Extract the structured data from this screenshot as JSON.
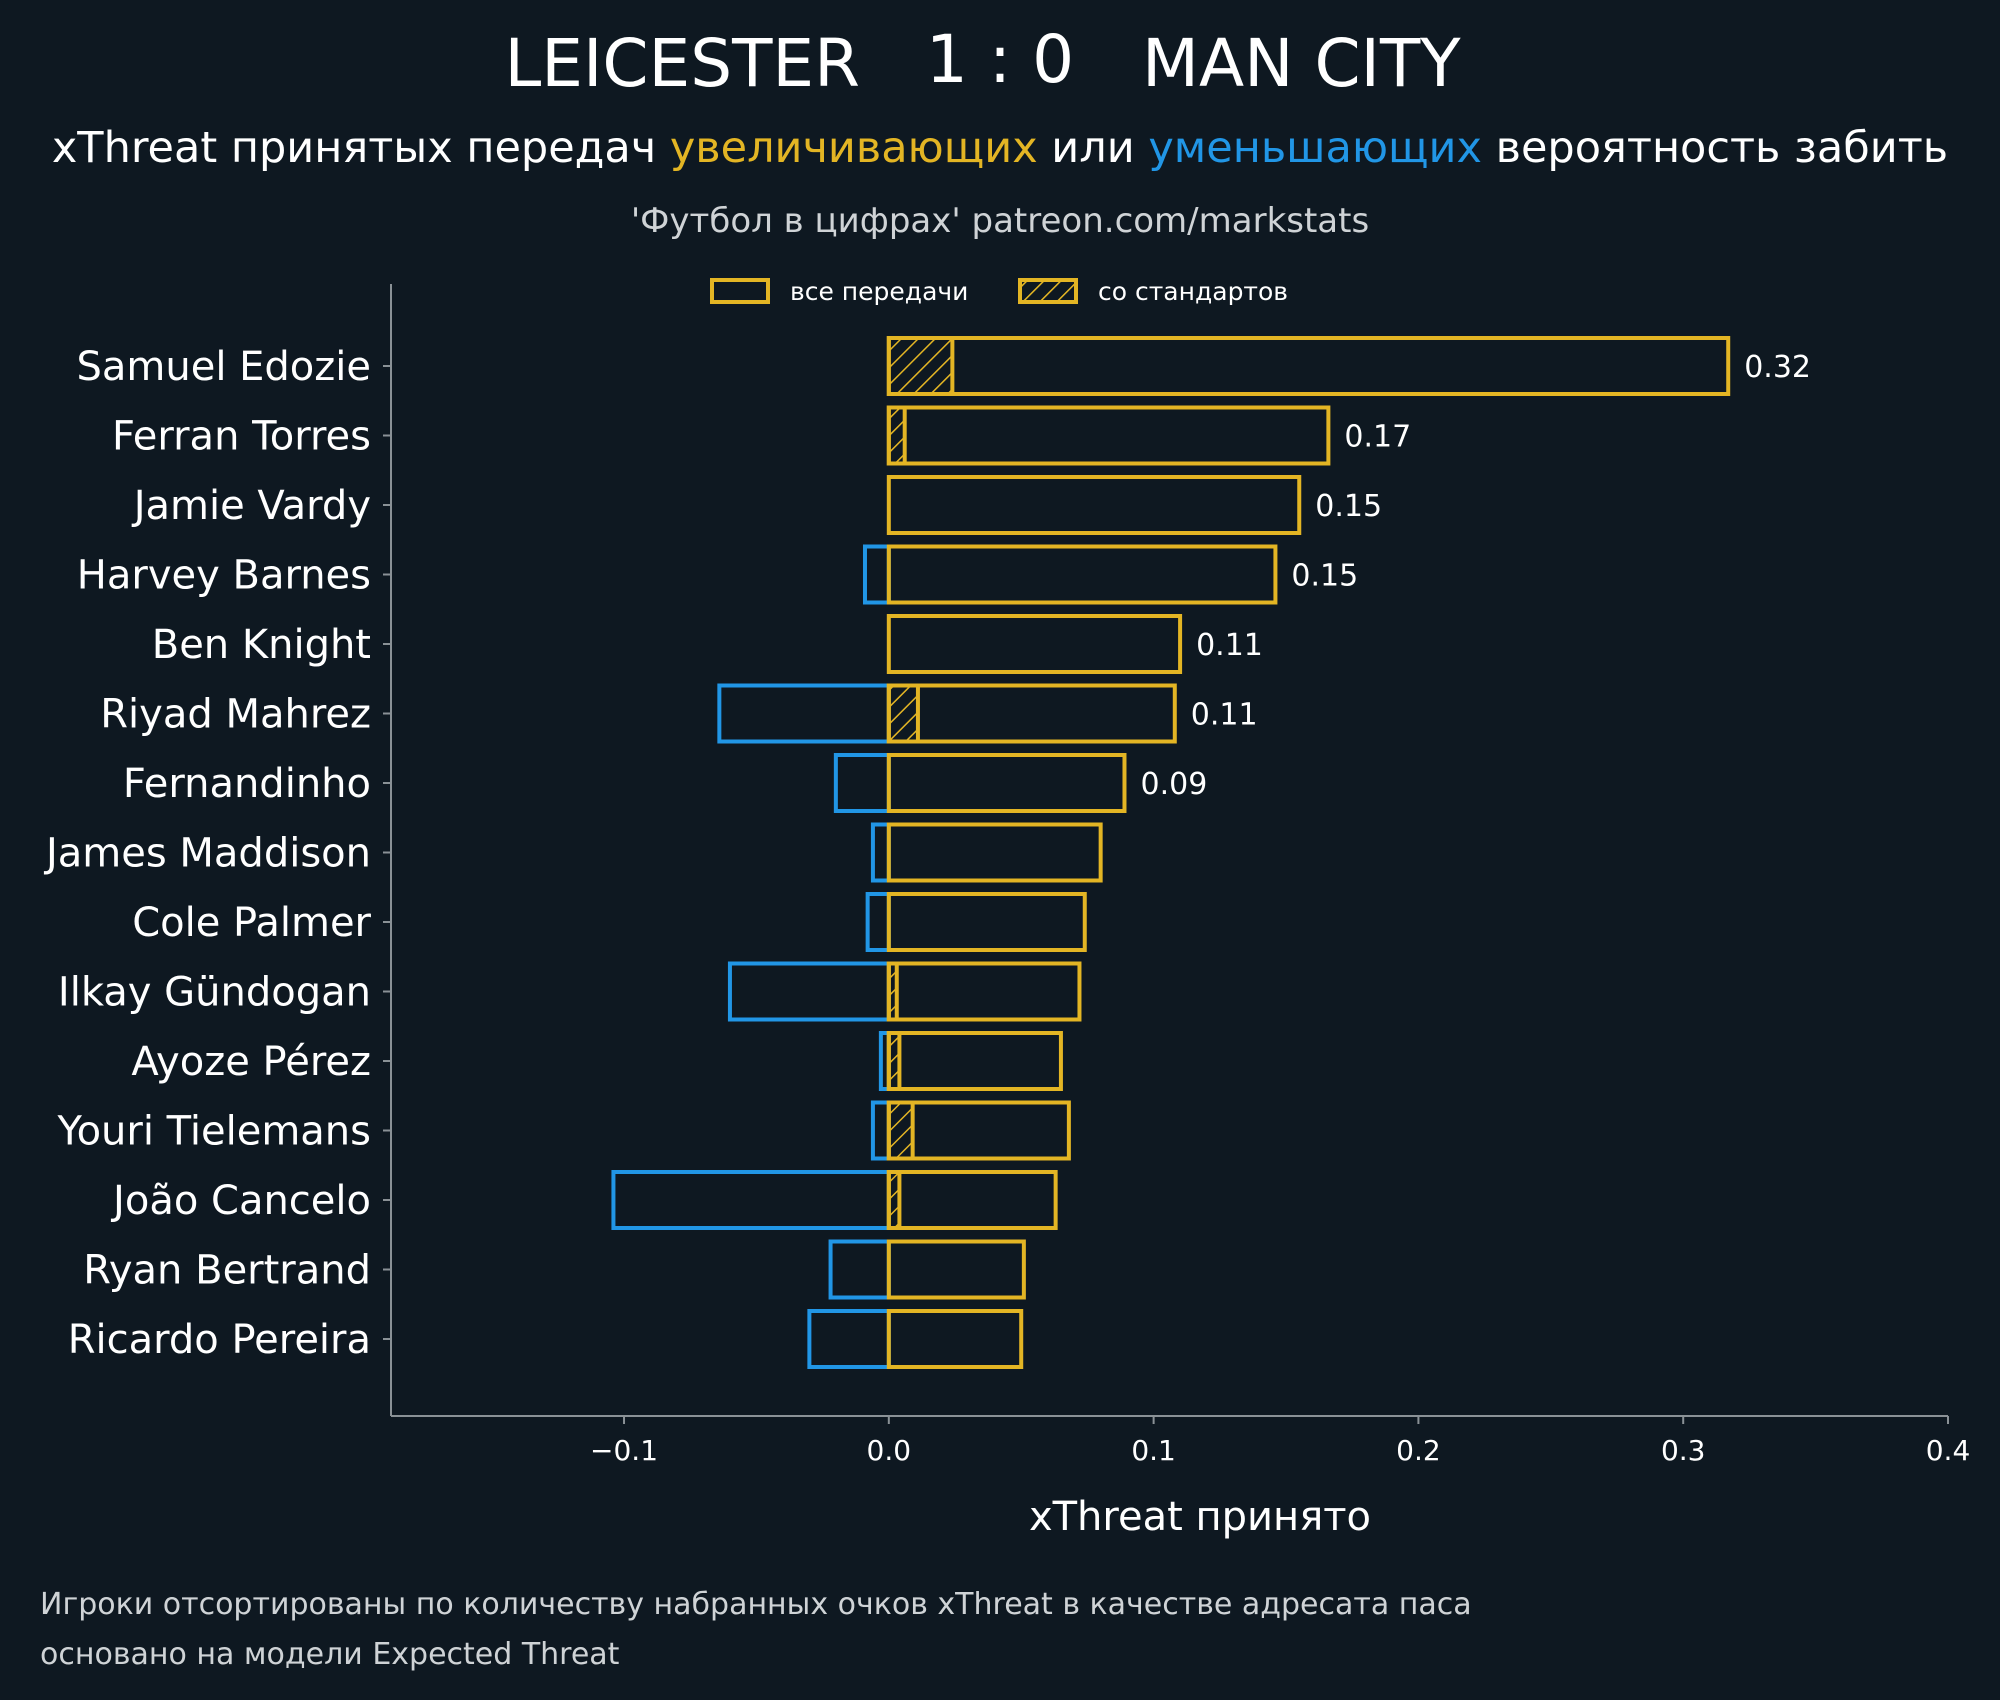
{
  "header": {
    "home_team": "LEICESTER",
    "score": "1 : 0",
    "away_team": "MAN CITY",
    "subtitle_parts": [
      {
        "text": "xThreat принятых передач ",
        "color": "#ffffff"
      },
      {
        "text": "увеличивающих",
        "color": "#e3b524"
      },
      {
        "text": " или ",
        "color": "#ffffff"
      },
      {
        "text": "уменьшающих",
        "color": "#2196e6"
      },
      {
        "text": " вероятность забить",
        "color": "#ffffff"
      }
    ],
    "source": "'Футбол в цифрах' patreon.com/markstats"
  },
  "legend": {
    "all_passes": "все передачи",
    "set_pieces": "со стандартов"
  },
  "colors": {
    "background": "#0e1821",
    "positive": "#e3b524",
    "negative": "#2196e6",
    "axis": "#8a9196"
  },
  "chart_data": {
    "type": "bar",
    "orientation": "horizontal",
    "title": "LEICESTER 1 : 0 MAN CITY",
    "xlabel": "xThreat принято",
    "xlim": [
      -0.188,
      0.4
    ],
    "xticks": [
      -0.1,
      0.0,
      0.1,
      0.2,
      0.3,
      0.4
    ],
    "xtick_labels": [
      "−0.1",
      "0.0",
      "0.1",
      "0.2",
      "0.3",
      "0.4"
    ],
    "categories": [
      "Samuel Edozie",
      "Ferran Torres",
      "Jamie Vardy",
      "Harvey Barnes",
      "Ben Knight",
      "Riyad Mahrez",
      "Fernandinho",
      "James Maddison",
      "Cole Palmer",
      "Ilkay Gündogan",
      "Ayoze Pérez",
      "Youri Tielemans",
      "João Cancelo",
      "Ryan Bertrand",
      "Ricardo Pereira"
    ],
    "series": [
      {
        "name": "все передачи (увеличивающих)",
        "values": [
          0.317,
          0.166,
          0.155,
          0.146,
          0.11,
          0.108,
          0.089,
          0.08,
          0.074,
          0.072,
          0.065,
          0.068,
          0.063,
          0.051,
          0.05
        ]
      },
      {
        "name": "со стандартов",
        "values": [
          0.024,
          0.006,
          0.0,
          0.0,
          0.0,
          0.011,
          0.0,
          0.0,
          0.0,
          0.003,
          0.004,
          0.009,
          0.004,
          0.0,
          0.0
        ]
      },
      {
        "name": "все передачи (уменьшающих)",
        "values": [
          0.0,
          0.0,
          0.0,
          -0.009,
          0.0,
          -0.064,
          -0.02,
          -0.006,
          -0.008,
          -0.06,
          -0.003,
          -0.006,
          -0.104,
          -0.022,
          -0.03
        ]
      }
    ],
    "value_labels": [
      "0.32",
      "0.17",
      "0.15",
      "0.15",
      "0.11",
      "0.11",
      "0.09",
      "",
      "",
      "",
      "",
      "",
      "",
      "",
      ""
    ],
    "legend_position": "top"
  },
  "footnotes": [
    "Игроки отсортированы по количеству набранных очков xThreat в качестве адресата паса",
    "основано на модели Expected Threat"
  ]
}
